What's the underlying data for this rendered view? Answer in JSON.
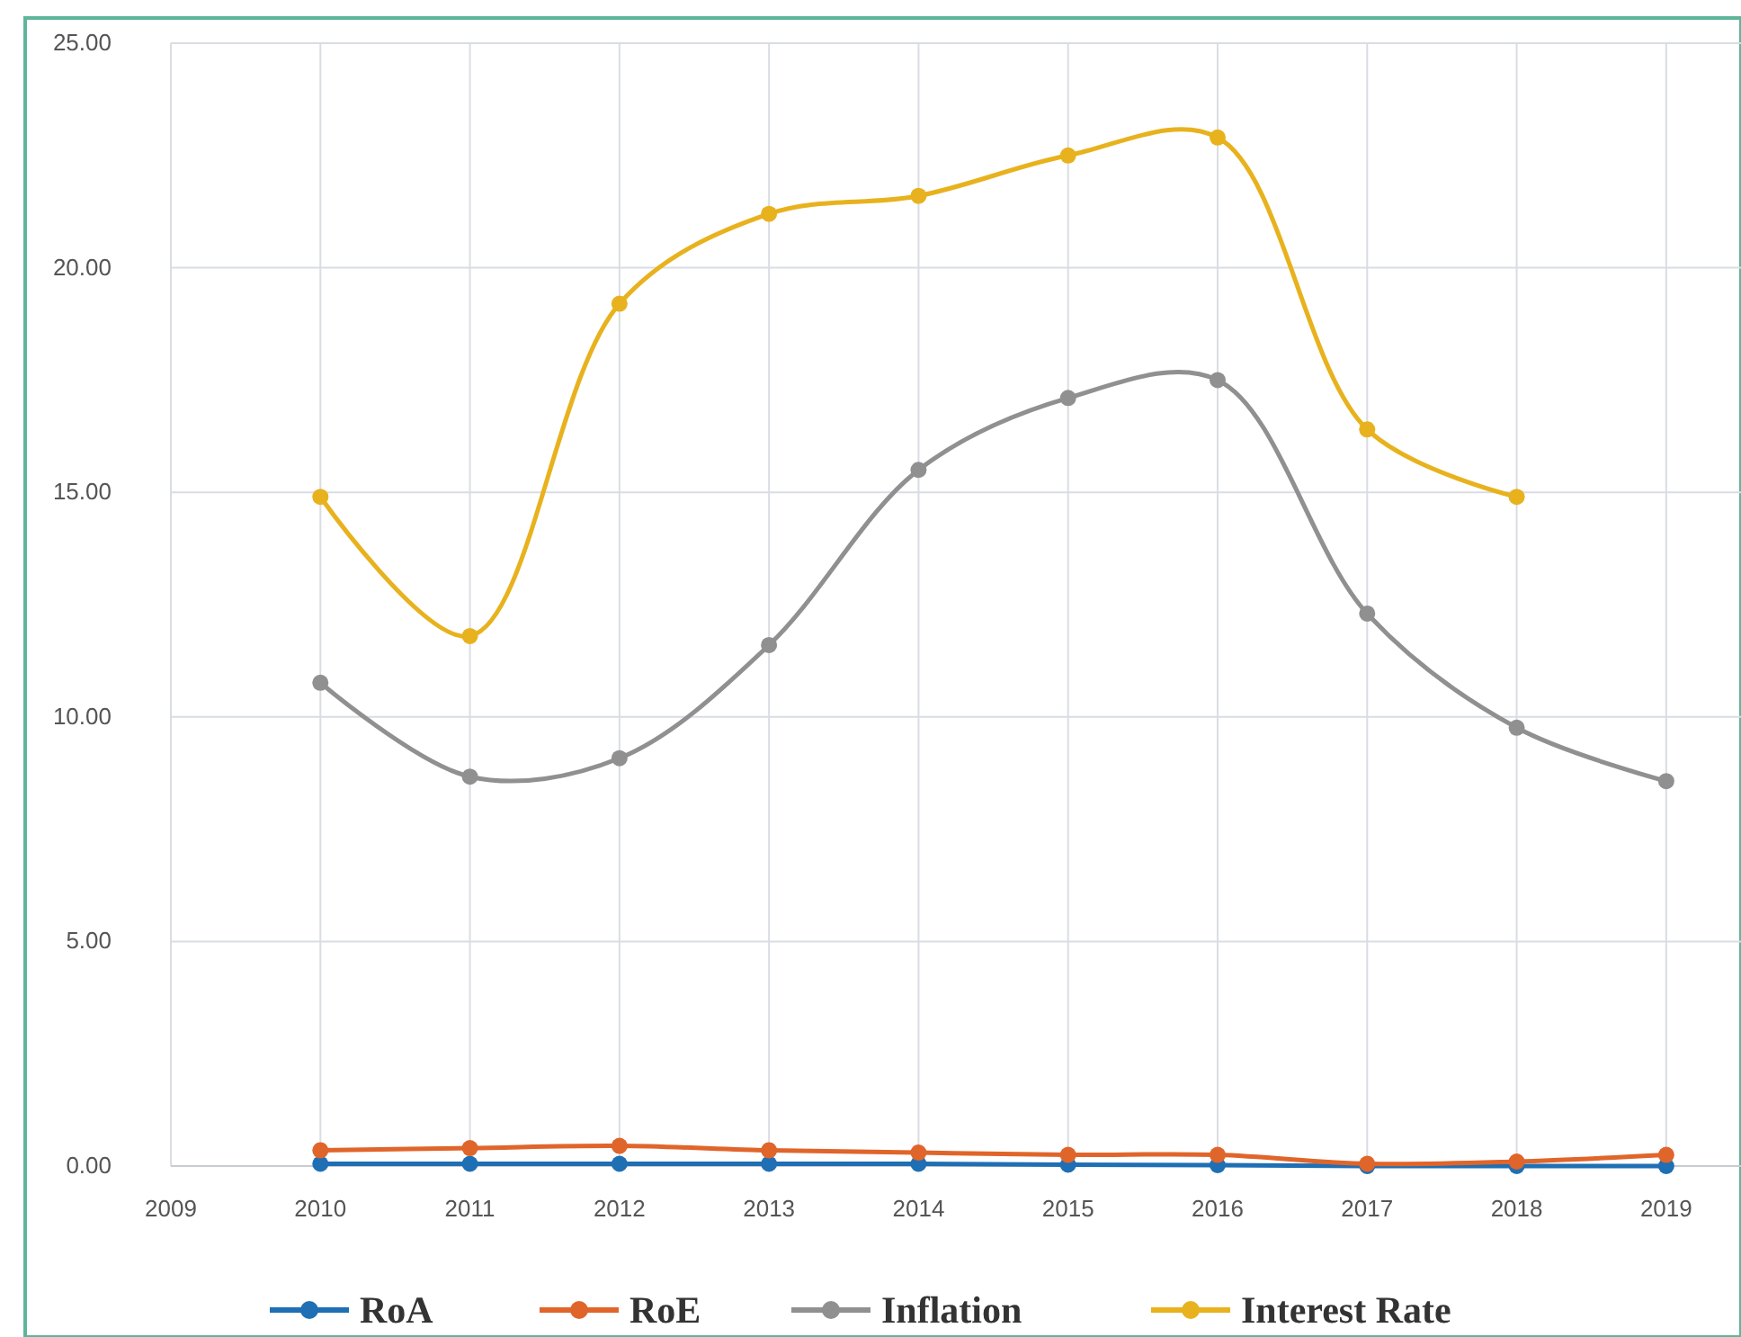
{
  "chart_data": {
    "type": "line",
    "x": [
      2010,
      2011,
      2012,
      2013,
      2014,
      2015,
      2016,
      2017,
      2018,
      2019
    ],
    "series": [
      {
        "name": "RoA",
        "color": "#1f6fb4",
        "values": [
          0.05,
          0.05,
          0.05,
          0.05,
          0.05,
          0.03,
          0.02,
          0.0,
          0.0,
          0.0
        ]
      },
      {
        "name": "RoE",
        "color": "#e0652a",
        "values": [
          0.35,
          0.4,
          0.45,
          0.35,
          0.3,
          0.25,
          0.25,
          0.05,
          0.1,
          0.25
        ]
      },
      {
        "name": "Inflation",
        "color": "#909090",
        "values": [
          10.76,
          8.67,
          9.08,
          11.6,
          15.5,
          17.1,
          17.5,
          12.3,
          9.76,
          8.57
        ]
      },
      {
        "name": "Interest Rate",
        "color": "#e8b21e",
        "values": [
          14.9,
          11.8,
          19.2,
          21.2,
          21.6,
          22.5,
          22.9,
          16.4,
          14.9,
          null
        ]
      }
    ],
    "xlim": [
      2009,
      2019.5
    ],
    "xticks": [
      2009,
      2010,
      2011,
      2012,
      2013,
      2014,
      2015,
      2016,
      2017,
      2018,
      2019
    ],
    "ylim": [
      0,
      25
    ],
    "yticks": [
      {
        "value": 0,
        "label": "0.00"
      },
      {
        "value": 5,
        "label": "5.00"
      },
      {
        "value": 10,
        "label": "10.00"
      },
      {
        "value": 15,
        "label": "15.00"
      },
      {
        "value": 20,
        "label": "20.00"
      },
      {
        "value": 25,
        "label": "25.00"
      }
    ],
    "grid": true,
    "legend": "bottom",
    "marker": "circle",
    "line_style": "solid"
  }
}
